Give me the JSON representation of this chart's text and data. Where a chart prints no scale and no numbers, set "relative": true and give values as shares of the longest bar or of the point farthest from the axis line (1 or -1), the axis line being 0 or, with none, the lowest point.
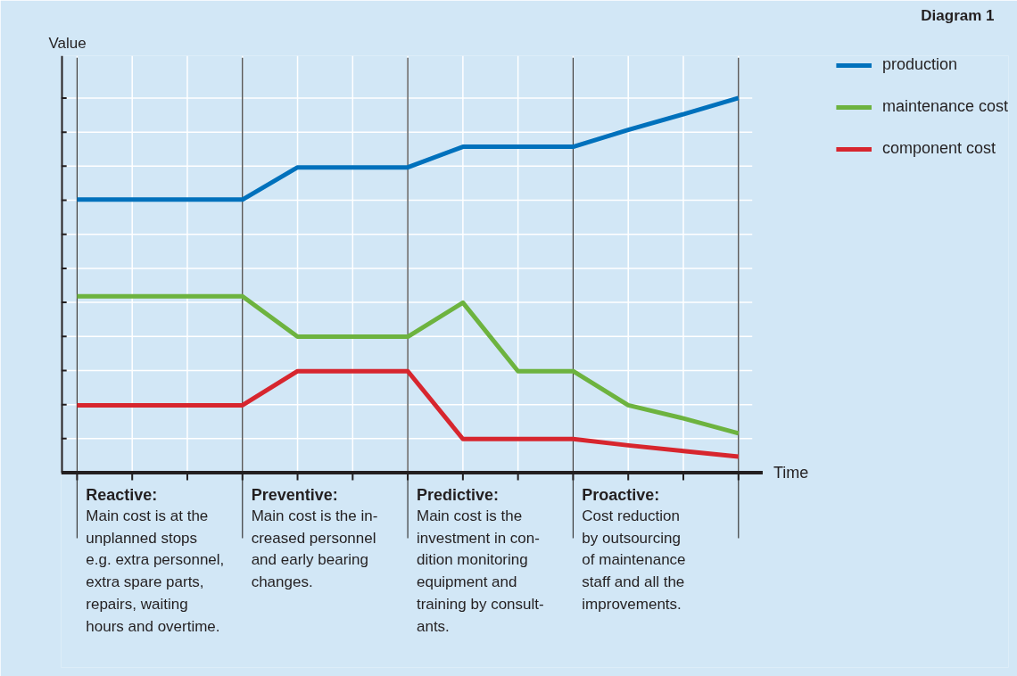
{
  "chart_data": {
    "type": "line",
    "title": "Diagram 1",
    "xlabel": "Time",
    "ylabel": "Value",
    "relative": true,
    "grid": true,
    "legend": "right",
    "categories": [
      null,
      null,
      null,
      null,
      null,
      null,
      null,
      null,
      null,
      null,
      null,
      null,
      null
    ],
    "series": [
      {
        "name": "production",
        "color": "#0071bc",
        "values": [
          0.729,
          0.729,
          0.729,
          0.729,
          0.815,
          0.815,
          0.815,
          0.87,
          0.87,
          0.87,
          0.915,
          0.957,
          1
        ]
      },
      {
        "name": "maintenance cost",
        "color": "#6db33f",
        "values": [
          0.471,
          0.471,
          0.471,
          0.471,
          0.363,
          0.363,
          0.363,
          0.454,
          0.271,
          0.271,
          0.18,
          0.145,
          0.105
        ]
      },
      {
        "name": "component cost",
        "color": "#d7262e",
        "values": [
          0.18,
          0.18,
          0.18,
          0.18,
          0.271,
          0.271,
          0.271,
          0.09,
          0.09,
          0.09,
          0.073,
          0.058,
          0.043
        ]
      }
    ],
    "annotations": [
      "Reactive:\nMain cost is at the\nunplanned stops\ne.g. extra personnel,\nextra spare parts,\nrepairs, waiting\nhours and overtime.",
      "Preventive:\nMain cost is the in-\ncreased personnel\nand early bearing\nchanges.",
      "Predictive:\nMain cost is the\ninvestment in con-\ndition monitoring\nequipment and\ntraining by consult-\nants.",
      "Proactive:\nCost reduction\nby outsourcing\nof maintenance\nstaff and all the\nimprovements."
    ]
  }
}
